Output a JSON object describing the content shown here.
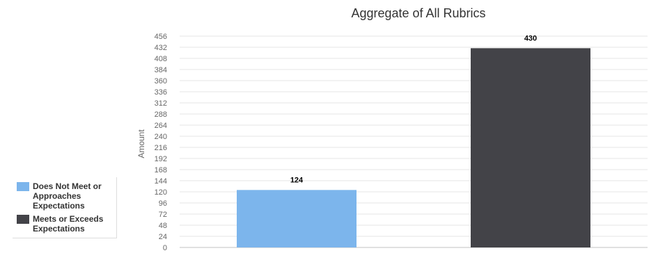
{
  "chart_data": {
    "type": "bar",
    "title": "Aggregate of All Rubrics",
    "xlabel": "",
    "ylabel": "Amount",
    "ylim": [
      0,
      456
    ],
    "yticks": [
      0,
      24,
      48,
      72,
      96,
      120,
      144,
      168,
      192,
      216,
      240,
      264,
      288,
      312,
      336,
      360,
      384,
      408,
      432,
      456
    ],
    "grid": true,
    "legend_position": "left",
    "series": [
      {
        "name": "Does Not Meet or Approaches Expectations",
        "value": 124,
        "color": "#7cb5ec"
      },
      {
        "name": "Meets or Exceeds Expectations",
        "value": 430,
        "color": "#434348"
      }
    ]
  }
}
